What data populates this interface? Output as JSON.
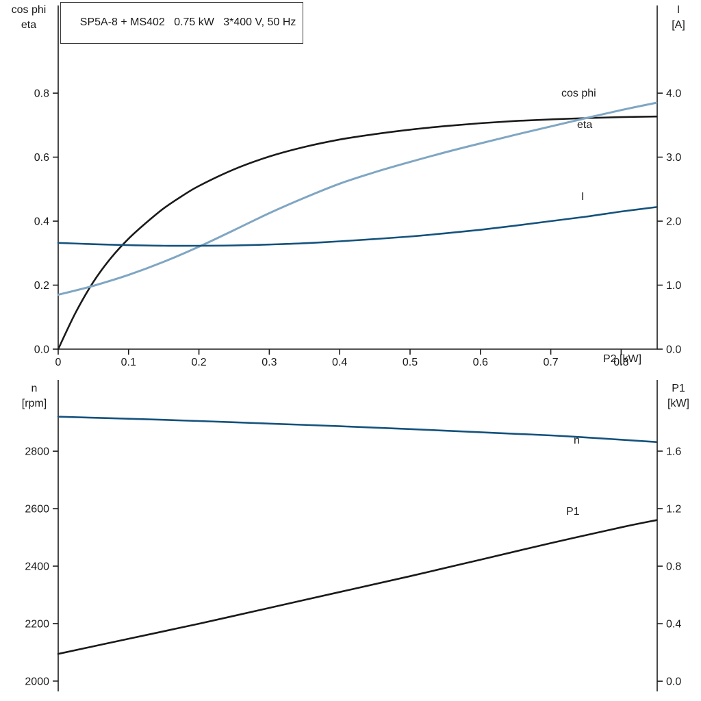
{
  "title_box": {
    "text": "SP5A-8 + MS402   0.75 kW   3*400 V, 50 Hz"
  },
  "colors": {
    "light_blue": "#7fa6c3",
    "dark_blue": "#14527c",
    "black": "#1a1a1a",
    "axis": "#1a1a1a",
    "background": "#ffffff"
  },
  "chart_data": [
    {
      "type": "line",
      "title": "SP5A-8 + MS402   0.75 kW   3*400 V, 50 Hz",
      "x_label": "P2 [kW]",
      "x_range": [
        0,
        0.8512
      ],
      "x_tick_values": [
        0,
        0.1,
        0.2,
        0.3,
        0.4,
        0.5,
        0.6,
        0.7,
        0.8
      ],
      "x_tick_labels": [
        "0",
        "0.1",
        "0.2",
        "0.3",
        "0.4",
        "0.5",
        "0.6",
        "0.7",
        "0.8"
      ],
      "grid": false,
      "legend": "inline-curve-labels",
      "left_axis": {
        "label_lines": [
          "cos phi",
          "eta"
        ],
        "range": [
          0,
          1.074
        ],
        "tick_values": [
          0.0,
          0.2,
          0.4,
          0.6,
          0.8
        ],
        "tick_labels": [
          "0.0",
          "0.2",
          "0.4",
          "0.6",
          "0.8"
        ]
      },
      "right_axis": {
        "label_lines": [
          "I",
          "[A]"
        ],
        "range": [
          0,
          5.37
        ],
        "tick_values": [
          0.0,
          1.0,
          2.0,
          3.0,
          4.0
        ],
        "tick_labels": [
          "0.0",
          "1.0",
          "2.0",
          "3.0",
          "4.0"
        ]
      },
      "series": [
        {
          "name": "eta",
          "axis": "left",
          "color": "#1a1a1a",
          "width": 2.6,
          "x": [
            0,
            0.025,
            0.05,
            0.075,
            0.1,
            0.125,
            0.15,
            0.175,
            0.2,
            0.25,
            0.3,
            0.35,
            0.4,
            0.45,
            0.5,
            0.55,
            0.6,
            0.65,
            0.7,
            0.75,
            0.8,
            0.85
          ],
          "y": [
            0,
            0.115,
            0.21,
            0.285,
            0.345,
            0.395,
            0.44,
            0.477,
            0.51,
            0.562,
            0.602,
            0.632,
            0.655,
            0.672,
            0.686,
            0.697,
            0.706,
            0.713,
            0.718,
            0.722,
            0.725,
            0.727
          ]
        },
        {
          "name": "cos phi",
          "axis": "left",
          "color": "#7fa6c3",
          "width": 3,
          "x": [
            0,
            0.05,
            0.1,
            0.15,
            0.2,
            0.25,
            0.3,
            0.35,
            0.4,
            0.45,
            0.5,
            0.55,
            0.6,
            0.65,
            0.7,
            0.75,
            0.8,
            0.85
          ],
          "y": [
            0.17,
            0.198,
            0.232,
            0.273,
            0.32,
            0.372,
            0.425,
            0.473,
            0.517,
            0.553,
            0.585,
            0.615,
            0.643,
            0.67,
            0.696,
            0.722,
            0.747,
            0.77
          ]
        },
        {
          "name": "I",
          "axis": "right",
          "color": "#14527c",
          "width": 2.6,
          "x": [
            0,
            0.05,
            0.1,
            0.15,
            0.2,
            0.25,
            0.3,
            0.35,
            0.4,
            0.45,
            0.5,
            0.55,
            0.6,
            0.65,
            0.7,
            0.75,
            0.8,
            0.85
          ],
          "y": [
            1.66,
            1.64,
            1.625,
            1.615,
            1.615,
            1.62,
            1.635,
            1.655,
            1.685,
            1.72,
            1.76,
            1.81,
            1.865,
            1.93,
            2.0,
            2.07,
            2.15,
            2.22
          ]
        }
      ]
    },
    {
      "type": "line",
      "title": "",
      "x_label": "",
      "x_range": [
        0,
        0.8512
      ],
      "x_tick_values": [],
      "x_tick_labels": [],
      "grid": false,
      "legend": "inline-curve-labels",
      "left_axis": {
        "label_lines": [
          "n",
          "[rpm]"
        ],
        "range": [
          1964,
          3048
        ],
        "tick_values": [
          2000,
          2200,
          2400,
          2600,
          2800
        ],
        "tick_labels": [
          "2000",
          "2200",
          "2400",
          "2600",
          "2800"
        ]
      },
      "right_axis": {
        "label_lines": [
          "P1",
          "[kW]"
        ],
        "range": [
          -0.071,
          2.095
        ],
        "tick_values": [
          0.0,
          0.4,
          0.8,
          1.2,
          1.6
        ],
        "tick_labels": [
          "0.0",
          "0.4",
          "0.8",
          "1.2",
          "1.6"
        ]
      },
      "series": [
        {
          "name": "n",
          "axis": "left",
          "color": "#14527c",
          "width": 2.6,
          "x": [
            0,
            0.1,
            0.2,
            0.3,
            0.4,
            0.5,
            0.6,
            0.7,
            0.8,
            0.85
          ],
          "y": [
            2920,
            2913,
            2905,
            2896,
            2887,
            2877,
            2866,
            2855,
            2840,
            2832
          ]
        },
        {
          "name": "P1",
          "axis": "right",
          "color": "#1a1a1a",
          "width": 2.6,
          "x": [
            0,
            0.1,
            0.2,
            0.3,
            0.4,
            0.5,
            0.6,
            0.7,
            0.8,
            0.85
          ],
          "y": [
            0.19,
            0.295,
            0.4,
            0.51,
            0.62,
            0.73,
            0.845,
            0.96,
            1.07,
            1.12
          ]
        }
      ]
    }
  ]
}
